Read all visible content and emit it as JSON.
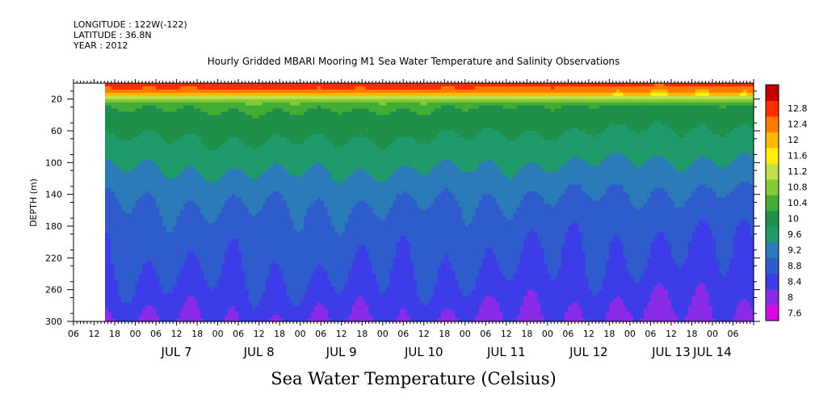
{
  "header": {
    "longitude_line": "LONGITUDE : 122W(-122)",
    "latitude_line": "LATITUDE : 36.8N",
    "year_line": "YEAR : 2012"
  },
  "chart_data": {
    "type": "heatmap",
    "title": "Hourly Gridded MBARI Mooring M1 Sea Water Temperature and Salinity Observations",
    "bottom_title": "Sea Water Temperature (Celsius)",
    "xlabel": "",
    "ylabel": "DEPTH (m)",
    "ylim": [
      300,
      0
    ],
    "y_ticks": [
      20,
      60,
      100,
      140,
      180,
      220,
      260,
      300
    ],
    "x_range_hours": [
      0,
      198
    ],
    "x_ticks_hours": [
      0,
      6,
      12,
      18,
      24,
      30,
      36,
      42,
      48,
      54,
      60,
      66,
      72,
      78,
      84,
      90,
      96,
      102,
      108,
      114,
      120,
      126,
      132,
      138,
      144,
      150,
      156,
      162,
      168,
      174,
      180,
      186,
      192
    ],
    "hour_tick_labels": [
      "06",
      "12",
      "18",
      "00",
      "06",
      "12",
      "18",
      "00",
      "06",
      "12",
      "18",
      "00",
      "06",
      "12",
      "18",
      "00",
      "06",
      "12",
      "18",
      "00",
      "06",
      "12",
      "18",
      "00",
      "06",
      "12",
      "18",
      "00",
      "06",
      "12",
      "18",
      "00",
      "06"
    ],
    "day_labels": [
      "JUL  7",
      "JUL  8",
      "JUL  9",
      "JUL 10",
      "JUL 11",
      "JUL 12",
      "JUL 13",
      "JUL 14"
    ],
    "data_start_hour": 9,
    "color_levels": [
      "7.6",
      "8",
      "8.4",
      "8.8",
      "9.2",
      "9.6",
      "10",
      "10.4",
      "10.8",
      "11.2",
      "11.6",
      "12",
      "12.4",
      "12.8"
    ],
    "palette": [
      "#d70ae6",
      "#8a2be8",
      "#3d3de8",
      "#2e5ccc",
      "#2b7bb8",
      "#1f9a6a",
      "#1f8f4a",
      "#43ad35",
      "#84cc34",
      "#c2e04a",
      "#fff000",
      "#ffb700",
      "#ff7a00",
      "#ff2d00",
      "#c50000"
    ],
    "depth_profile": [
      {
        "depth": 0,
        "temp": 12.6
      },
      {
        "depth": 8,
        "temp": 12.3
      },
      {
        "depth": 14,
        "temp": 11.7
      },
      {
        "depth": 20,
        "temp": 10.7
      },
      {
        "depth": 30,
        "temp": 10.0
      },
      {
        "depth": 45,
        "temp": 9.8
      },
      {
        "depth": 60,
        "temp": 9.65
      },
      {
        "depth": 80,
        "temp": 9.45
      },
      {
        "depth": 100,
        "temp": 9.25
      },
      {
        "depth": 120,
        "temp": 9.05
      },
      {
        "depth": 140,
        "temp": 8.85
      },
      {
        "depth": 160,
        "temp": 8.7
      },
      {
        "depth": 180,
        "temp": 8.6
      },
      {
        "depth": 200,
        "temp": 8.5
      },
      {
        "depth": 220,
        "temp": 8.45
      },
      {
        "depth": 240,
        "temp": 8.35
      },
      {
        "depth": 260,
        "temp": 8.25
      },
      {
        "depth": 280,
        "temp": 8.1
      },
      {
        "depth": 300,
        "temp": 7.95
      }
    ]
  }
}
